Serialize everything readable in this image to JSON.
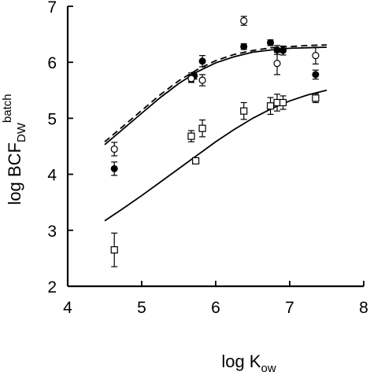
{
  "chart_data": {
    "type": "scatter",
    "title": "",
    "xlabel": {
      "main": "log K",
      "subscript": "ow"
    },
    "ylabel": {
      "main": "log BCF",
      "subscript": "DW",
      "superscript": "batch"
    },
    "xlim": [
      4,
      8
    ],
    "ylim": [
      2,
      7
    ],
    "xticks": [
      "4",
      "5",
      "6",
      "7",
      "8"
    ],
    "yticks": [
      "2",
      "3",
      "4",
      "5",
      "6",
      "7"
    ],
    "grid": false,
    "legend": "none",
    "series": [
      {
        "marker": "filled-circle",
        "points": [
          {
            "x": 4.63,
            "y": 4.1,
            "err": 0.12
          },
          {
            "x": 5.67,
            "y": 5.73,
            "err": 0.08
          },
          {
            "x": 5.71,
            "y": 5.76,
            "err": 0.06
          },
          {
            "x": 5.82,
            "y": 6.02,
            "err": 0.1
          },
          {
            "x": 6.38,
            "y": 6.28,
            "err": 0.05
          },
          {
            "x": 6.74,
            "y": 6.35,
            "err": 0.05
          },
          {
            "x": 6.83,
            "y": 6.22,
            "err": 0.08
          },
          {
            "x": 6.91,
            "y": 6.21,
            "err": 0.08
          },
          {
            "x": 7.35,
            "y": 5.78,
            "err": 0.08
          }
        ]
      },
      {
        "marker": "open-circle",
        "points": [
          {
            "x": 4.63,
            "y": 4.45,
            "err": 0.12
          },
          {
            "x": 5.67,
            "y": 5.71,
            "err": 0.07
          },
          {
            "x": 5.82,
            "y": 5.68,
            "err": 0.1
          },
          {
            "x": 6.38,
            "y": 6.74,
            "err": 0.08
          },
          {
            "x": 6.83,
            "y": 5.98,
            "err": 0.2
          },
          {
            "x": 7.35,
            "y": 6.12,
            "err": 0.15
          }
        ]
      },
      {
        "marker": "open-square",
        "points": [
          {
            "x": 4.63,
            "y": 2.65,
            "err": 0.3
          },
          {
            "x": 5.67,
            "y": 4.68,
            "err": 0.1
          },
          {
            "x": 5.73,
            "y": 4.24,
            "err": 0.05
          },
          {
            "x": 5.82,
            "y": 4.82,
            "err": 0.15
          },
          {
            "x": 6.38,
            "y": 5.13,
            "err": 0.15
          },
          {
            "x": 6.74,
            "y": 5.22,
            "err": 0.15
          },
          {
            "x": 6.83,
            "y": 5.28,
            "err": 0.15
          },
          {
            "x": 6.91,
            "y": 5.28,
            "err": 0.12
          },
          {
            "x": 7.35,
            "y": 5.36,
            "err": 0.08
          }
        ]
      }
    ],
    "curves": [
      {
        "style": "dashed",
        "x": [
          4.5,
          4.75,
          5.0,
          5.25,
          5.5,
          5.75,
          6.0,
          6.25,
          6.5,
          6.75,
          7.0,
          7.25,
          7.5
        ],
        "y": [
          4.58,
          4.86,
          5.14,
          5.42,
          5.67,
          5.87,
          6.03,
          6.14,
          6.21,
          6.26,
          6.28,
          6.3,
          6.31
        ]
      },
      {
        "style": "solid",
        "x": [
          4.5,
          4.75,
          5.0,
          5.25,
          5.5,
          5.75,
          6.0,
          6.25,
          6.5,
          6.75,
          7.0,
          7.25,
          7.5
        ],
        "y": [
          4.53,
          4.81,
          5.09,
          5.37,
          5.62,
          5.83,
          5.99,
          6.1,
          6.18,
          6.22,
          6.25,
          6.26,
          6.27
        ]
      },
      {
        "style": "solid",
        "x": [
          4.5,
          4.75,
          5.0,
          5.25,
          5.5,
          5.75,
          6.0,
          6.25,
          6.5,
          6.75,
          7.0,
          7.25,
          7.5
        ],
        "y": [
          3.17,
          3.39,
          3.62,
          3.86,
          4.1,
          4.34,
          4.58,
          4.8,
          5.0,
          5.17,
          5.31,
          5.42,
          5.5
        ]
      }
    ]
  }
}
